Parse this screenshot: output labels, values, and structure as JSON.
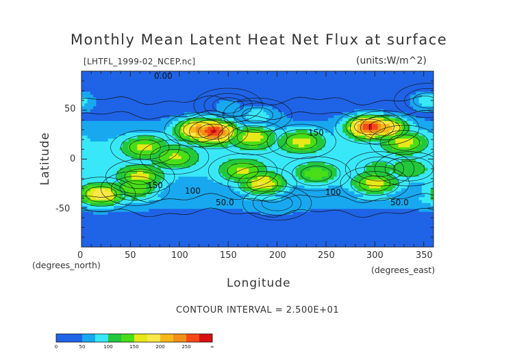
{
  "chart_data": {
    "type": "heatmap",
    "title": "Monthly Mean Latent Heat Net Flux at surface",
    "source_label": "[LHTFL_1999-02_NCEP.nc]",
    "units_label": "(units:W/m^2)",
    "xlabel": "Longitude",
    "ylabel": "Latitude",
    "x_unit_label": "(degrees_east)",
    "y_unit_label": "(degrees_north)",
    "xlim": [
      0,
      360
    ],
    "ylim": [
      -90,
      90
    ],
    "x_ticks": [
      0,
      50,
      100,
      150,
      200,
      250,
      300,
      350
    ],
    "y_ticks": [
      50,
      0,
      -50
    ],
    "contour_interval_text": "CONTOUR INTERVAL = 2.500E+01",
    "contour_labels": [
      "150",
      "150",
      "100",
      "50.0",
      "50.0",
      "100",
      "0.00"
    ],
    "colorbar": {
      "levels": [
        0,
        25,
        50,
        75,
        100,
        125,
        150,
        175,
        200,
        225,
        250,
        275,
        300
      ],
      "labels": [
        "0",
        "50",
        "100",
        "150",
        "200",
        "250",
        "∞"
      ],
      "colors": [
        "#1f63e6",
        "#1f63e6",
        "#18a8f0",
        "#38e8f8",
        "#22c83c",
        "#48de18",
        "#e8e818",
        "#f8e848",
        "#f8b818",
        "#f09018",
        "#f84818",
        "#d81010"
      ]
    },
    "regions": [
      {
        "lon": 135,
        "lat": 28,
        "value": 280
      },
      {
        "lon": 120,
        "lat": 30,
        "value": 230
      },
      {
        "lon": 295,
        "lat": 33,
        "value": 280
      },
      {
        "lon": 310,
        "lat": 32,
        "value": 220
      },
      {
        "lon": 175,
        "lat": 22,
        "value": 170
      },
      {
        "lon": 225,
        "lat": 18,
        "value": 165
      },
      {
        "lon": 330,
        "lat": 17,
        "value": 165
      },
      {
        "lon": 65,
        "lat": 12,
        "value": 160
      },
      {
        "lon": 95,
        "lat": 2,
        "value": 155
      },
      {
        "lon": 165,
        "lat": -12,
        "value": 160
      },
      {
        "lon": 60,
        "lat": -18,
        "value": 165
      },
      {
        "lon": 185,
        "lat": -25,
        "value": 180
      },
      {
        "lon": 20,
        "lat": -36,
        "value": 200
      },
      {
        "lon": 55,
        "lat": -30,
        "value": 150
      },
      {
        "lon": 240,
        "lat": -15,
        "value": 140
      },
      {
        "lon": 300,
        "lat": -25,
        "value": 170
      },
      {
        "lon": 305,
        "lat": -10,
        "value": 110
      },
      {
        "lon": 335,
        "lat": -10,
        "value": 120
      },
      {
        "lon": 150,
        "lat": 55,
        "value": 60
      },
      {
        "lon": 180,
        "lat": 45,
        "value": 85
      },
      {
        "lon": 355,
        "lat": 60,
        "value": 90
      },
      {
        "lon": 200,
        "lat": -45,
        "value": 70
      }
    ]
  }
}
